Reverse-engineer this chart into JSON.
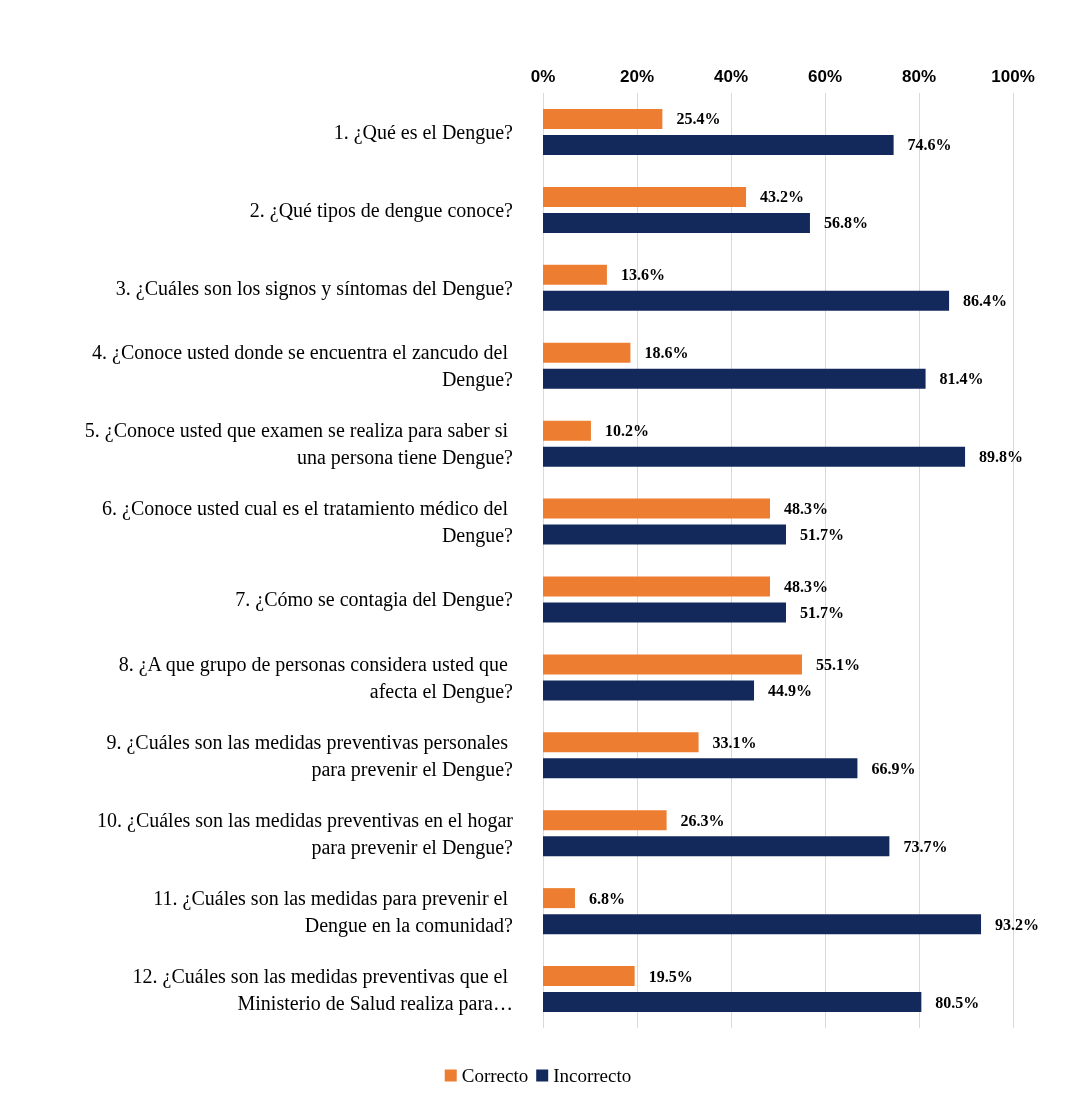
{
  "chart_data": {
    "type": "bar",
    "orientation": "horizontal",
    "categories": [
      "1. ¿Qué es el Dengue?",
      "2. ¿Qué tipos de dengue conoce?",
      "3. ¿Cuáles son los signos y síntomas del Dengue?",
      "4. ¿Conoce usted donde se encuentra el zancudo del Dengue?",
      "5. ¿Conoce usted que examen se realiza para saber si una persona tiene Dengue?",
      "6. ¿Conoce usted cual es el tratamiento médico del Dengue?",
      "7. ¿Cómo se contagia del Dengue?",
      "8. ¿A que grupo de personas considera usted que afecta el Dengue?",
      "9. ¿Cuáles son las medidas preventivas personales para prevenir el Dengue?",
      "10. ¿Cuáles son las medidas preventivas en el hogar para prevenir el Dengue?",
      "11. ¿Cuáles son las medidas para prevenir el Dengue en la comunidad?",
      "12. ¿Cuáles son las medidas preventivas que el Ministerio de Salud realiza para…"
    ],
    "series": [
      {
        "name": "Correcto",
        "color": "#ed7d31",
        "values": [
          25.4,
          43.2,
          13.6,
          18.6,
          10.2,
          48.3,
          48.3,
          55.1,
          33.1,
          26.3,
          6.8,
          19.5
        ],
        "value_labels": [
          "25.4%",
          "43.2%",
          "13.6%",
          "18.6%",
          "10.2%",
          "48.3%",
          "48.3%",
          "55.1%",
          "33.1%",
          "26.3%",
          "6.8%",
          "19.5%"
        ]
      },
      {
        "name": "Incorrecto",
        "color": "#13295b",
        "values": [
          74.6,
          56.8,
          86.4,
          81.4,
          89.8,
          51.7,
          51.7,
          44.9,
          66.9,
          73.7,
          93.2,
          80.5
        ],
        "value_labels": [
          "74.6%",
          "56.8%",
          "86.4%",
          "81.4%",
          "89.8%",
          "51.7%",
          "51.7%",
          "44.9%",
          "66.9%",
          "73.7%",
          "93.2%",
          "80.5%"
        ]
      }
    ],
    "xlim": [
      0,
      100
    ],
    "xticks": [
      {
        "value": 0,
        "label": "0%"
      },
      {
        "value": 20,
        "label": "20%"
      },
      {
        "value": 40,
        "label": "40%"
      },
      {
        "value": 60,
        "label": "60%"
      },
      {
        "value": 80,
        "label": "80%"
      },
      {
        "value": 100,
        "label": "100%"
      }
    ],
    "grid": "x",
    "legend": "bottom"
  }
}
